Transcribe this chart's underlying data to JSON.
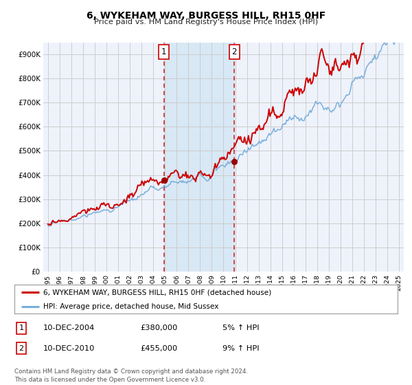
{
  "title": "6, WYKEHAM WAY, BURGESS HILL, RH15 0HF",
  "subtitle": "Price paid vs. HM Land Registry's House Price Index (HPI)",
  "legend_label_red": "6, WYKEHAM WAY, BURGESS HILL, RH15 0HF (detached house)",
  "legend_label_blue": "HPI: Average price, detached house, Mid Sussex",
  "annotation1_label": "1",
  "annotation1_date": "10-DEC-2004",
  "annotation1_price": "£380,000",
  "annotation1_hpi": "5% ↑ HPI",
  "annotation1_year": 2004.92,
  "annotation1_value": 380000,
  "annotation2_label": "2",
  "annotation2_date": "10-DEC-2010",
  "annotation2_price": "£455,000",
  "annotation2_hpi": "9% ↑ HPI",
  "annotation2_year": 2010.92,
  "annotation2_value": 455000,
  "ylabel_ticks": [
    "£0",
    "£100K",
    "£200K",
    "£300K",
    "£400K",
    "£500K",
    "£600K",
    "£700K",
    "£800K",
    "£900K"
  ],
  "ytick_values": [
    0,
    100000,
    200000,
    300000,
    400000,
    500000,
    600000,
    700000,
    800000,
    900000
  ],
  "xlim_start": 1994.6,
  "xlim_end": 2025.4,
  "ylim_top": 950000,
  "plot_bg_color": "#eef2fb",
  "grid_color": "#cccccc",
  "red_color": "#cc0000",
  "blue_color": "#7aafdb",
  "shading_color": "#d8e8f5",
  "footer_text": "Contains HM Land Registry data © Crown copyright and database right 2024.\nThis data is licensed under the Open Government Licence v3.0."
}
